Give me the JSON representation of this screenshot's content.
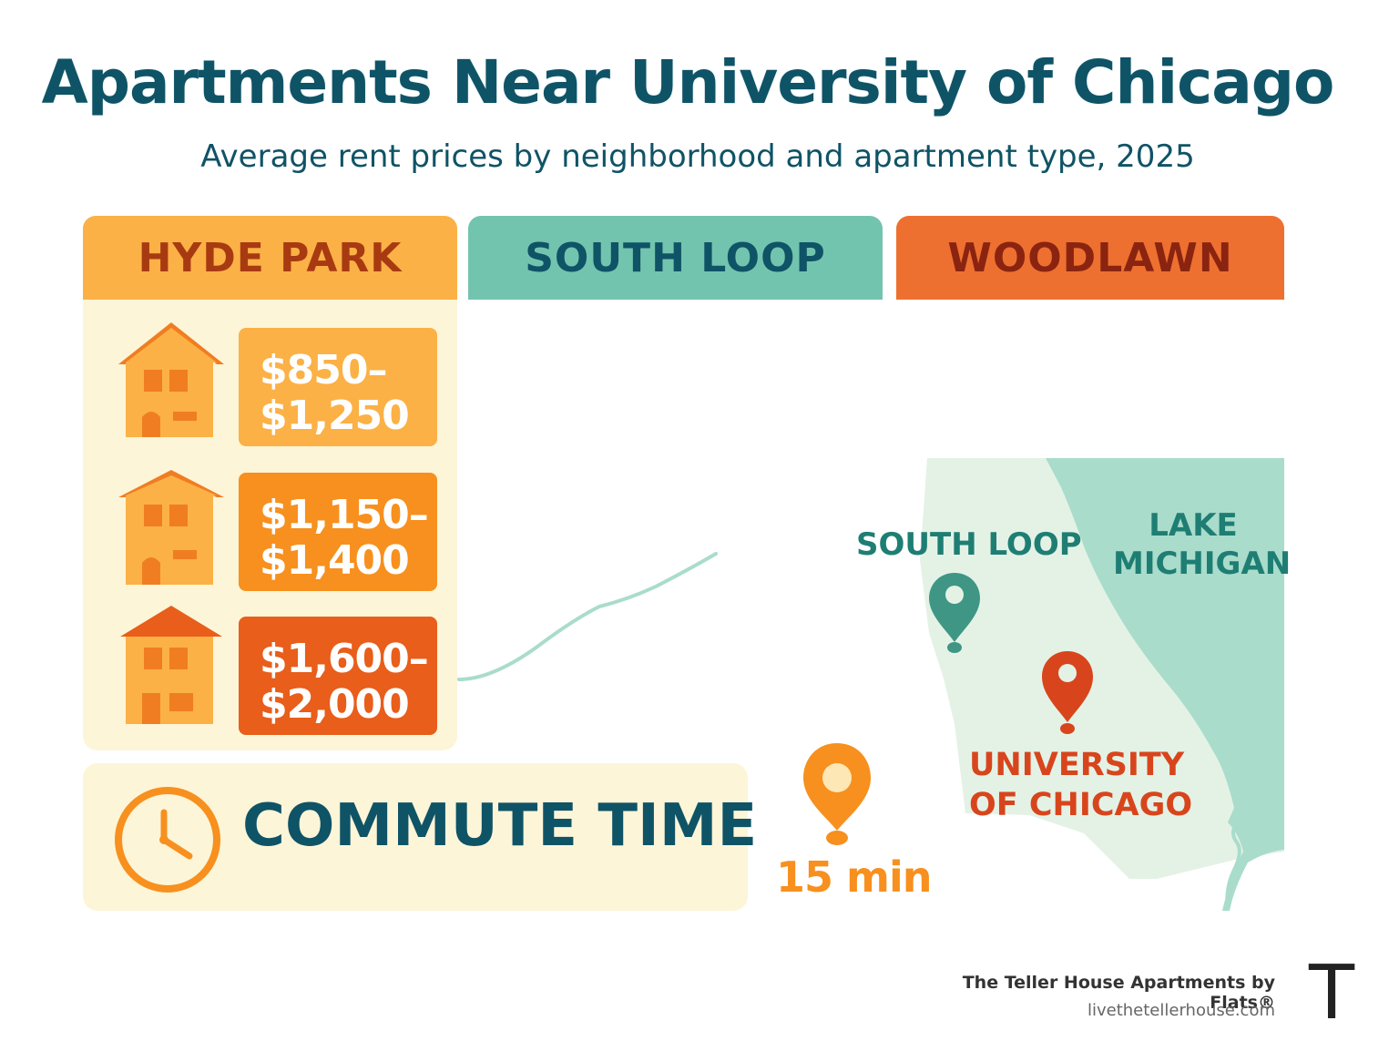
{
  "header": {
    "title": "Apartments Near University of Chicago",
    "subtitle": "Average rent prices by neighborhood and apartment type, 2025"
  },
  "neighborhoods": [
    {
      "name": "HYDE PARK",
      "color": "#fbb146"
    },
    {
      "name": "SOUTH LOOP",
      "color": "#73c4ae"
    },
    {
      "name": "WOODLAWN",
      "color": "#ee7030"
    }
  ],
  "hyde_park_prices": [
    {
      "line1": "$850–",
      "line2": "$1,250",
      "icon": "house-icon"
    },
    {
      "line1": "$1,150–",
      "line2": "$1,400",
      "icon": "house-icon"
    },
    {
      "line1": "$1,600–",
      "line2": "$2,000",
      "icon": "apartment-building-icon"
    }
  ],
  "commute": {
    "label": "COMMUTE TIME",
    "time": "15 min",
    "icon": "clock-icon"
  },
  "map": {
    "south_loop_label": "SOUTH LOOP",
    "lake_label_line1": "LAKE",
    "lake_label_line2": "MICHIGAN",
    "uchicago_line1": "UNIVERSITY",
    "uchicago_line2": "OF CHICAGO"
  },
  "footer": {
    "brand": "The Teller House Apartments by Flats®",
    "url": "livethetellerhouse.com",
    "logo": "T"
  }
}
